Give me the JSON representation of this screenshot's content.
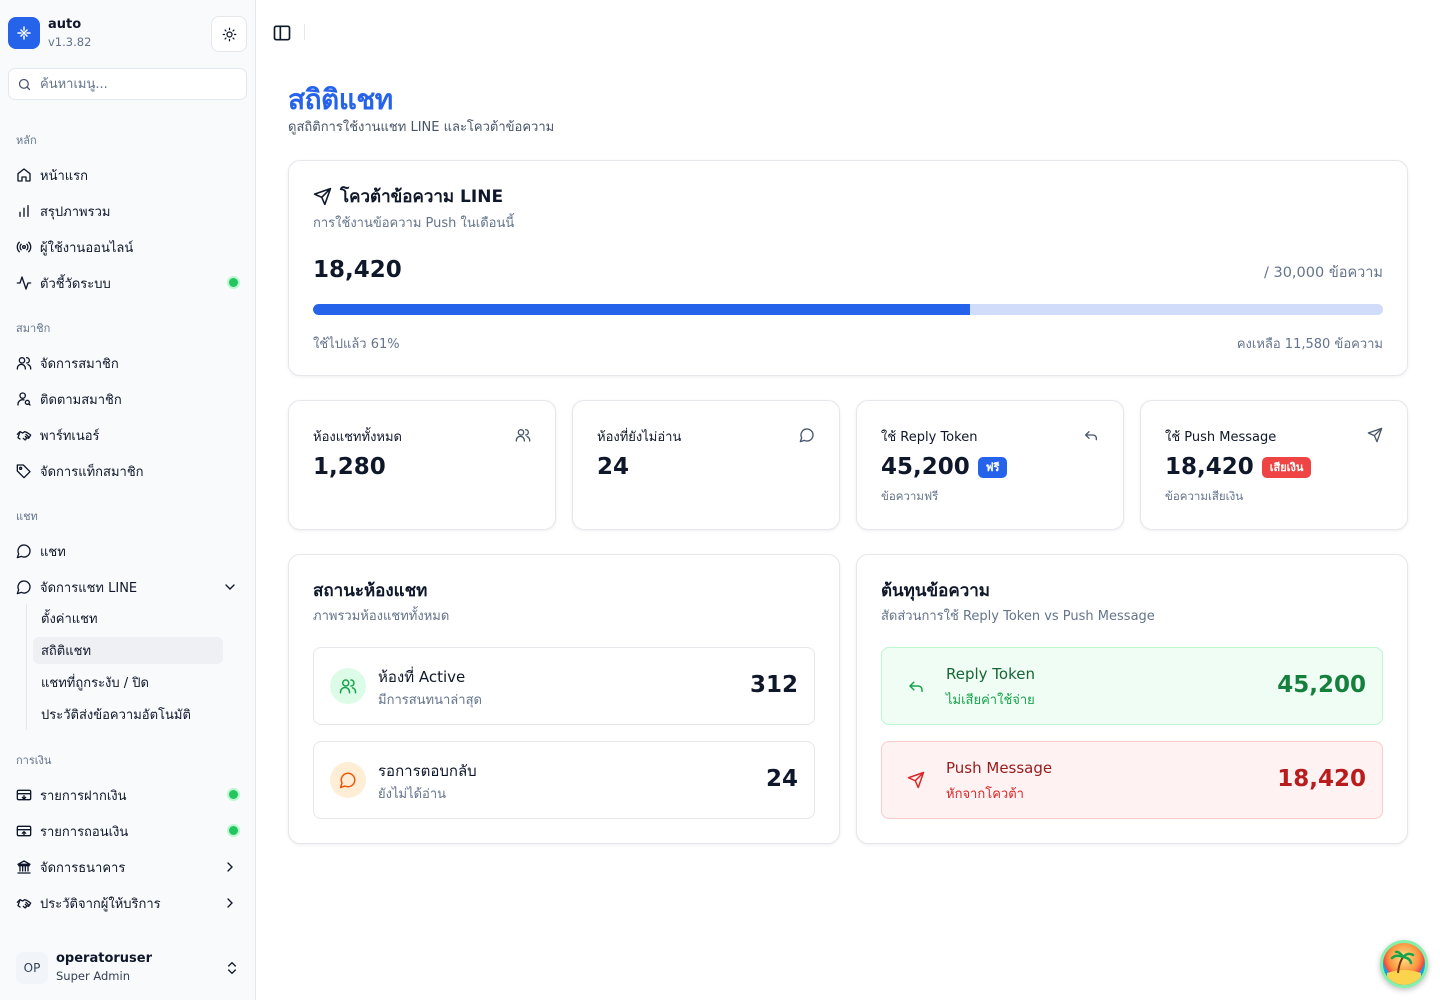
{
  "app": {
    "name": "auto",
    "version": "v1.3.82"
  },
  "search": {
    "placeholder": "ค้นหาเมนู..."
  },
  "sidebar": {
    "groups": [
      {
        "label": "หลัก",
        "items": [
          {
            "label": "หน้าแรก",
            "icon": "home-icon"
          },
          {
            "label": "สรุปภาพรวม",
            "icon": "bar-chart-icon"
          },
          {
            "label": "ผู้ใช้งานออนไลน์",
            "icon": "radio-icon"
          },
          {
            "label": "ตัวชี้วัดระบบ",
            "icon": "activity-icon",
            "status_dot": true
          }
        ]
      },
      {
        "label": "สมาชิก",
        "items": [
          {
            "label": "จัดการสมาชิก",
            "icon": "users-icon"
          },
          {
            "label": "ติดตามสมาชิก",
            "icon": "user-search-icon"
          },
          {
            "label": "พาร์ทเนอร์",
            "icon": "handshake-icon"
          },
          {
            "label": "จัดการแท็กสมาชิก",
            "icon": "tag-icon"
          }
        ]
      },
      {
        "label": "แชท",
        "items": [
          {
            "label": "แชท",
            "icon": "message-circle-icon"
          },
          {
            "label": "จัดการแชท LINE",
            "icon": "message-circle-icon",
            "expanded": true,
            "children": [
              {
                "label": "ตั้งค่าแชท"
              },
              {
                "label": "สถิติแชท",
                "active": true
              },
              {
                "label": "แชทที่ถูกระงับ / ปิด"
              },
              {
                "label": "ประวัติส่งข้อความอัตโนมัติ"
              }
            ]
          }
        ]
      },
      {
        "label": "การเงิน",
        "items": [
          {
            "label": "รายการฝากเงิน",
            "icon": "wallet-in-icon",
            "status_dot": true
          },
          {
            "label": "รายการถอนเงิน",
            "icon": "wallet-out-icon",
            "status_dot": true
          },
          {
            "label": "จัดการธนาคาร",
            "icon": "bank-icon",
            "chevron": true
          },
          {
            "label": "ประวัติจากผู้ให้บริการ",
            "icon": "handshake-icon",
            "chevron": true
          }
        ]
      }
    ]
  },
  "user": {
    "initials": "OP",
    "name": "operatoruser",
    "role": "Super Admin"
  },
  "page": {
    "title": "สถิติแชท",
    "subtitle": "ดูสถิติการใช้งานแชท LINE และโควต้าข้อความ"
  },
  "quota": {
    "title": "โควต้าข้อความ LINE",
    "description": "การใช้งานข้อความ Push ในเดือนนี้",
    "used": "18,420",
    "limit": "/ 30,000 ข้อความ",
    "used_fraction": 0.614,
    "percent_text": "ใช้ไปแล้ว 61%",
    "remaining_text": "คงเหลือ 11,580 ข้อความ"
  },
  "stats": [
    {
      "label": "ห้องแชททั้งหมด",
      "value": "1,280",
      "icon": "users-icon"
    },
    {
      "label": "ห้องที่ยังไม่อ่าน",
      "value": "24",
      "icon": "message-circle-icon"
    },
    {
      "label": "ใช้ Reply Token",
      "value": "45,200",
      "icon": "reply-icon",
      "badge": "ฟรี",
      "note": "ข้อความฟรี"
    },
    {
      "label": "ใช้ Push Message",
      "value": "18,420",
      "icon": "send-icon",
      "badge": "เสียเงิน",
      "note": "ข้อความเสียเงิน"
    }
  ],
  "room_status": {
    "title": "สถานะห้องแชท",
    "description": "ภาพรวมห้องแชททั้งหมด",
    "rows": [
      {
        "title": "ห้องที่ Active",
        "subtitle": "มีการสนทนาล่าสุด",
        "value": "312",
        "icon": "users-icon"
      },
      {
        "title": "รอการตอบกลับ",
        "subtitle": "ยังไม่ได้อ่าน",
        "value": "24",
        "icon": "message-circle-icon"
      }
    ]
  },
  "message_cost": {
    "title": "ต้นทุนข้อความ",
    "description": "สัดส่วนการใช้ Reply Token vs Push Message",
    "rows": [
      {
        "title": "Reply Token",
        "subtitle": "ไม่เสียค่าใช้จ่าย",
        "value": "45,200",
        "icon": "reply-icon"
      },
      {
        "title": "Push Message",
        "subtitle": "หักจากโควต้า",
        "value": "18,420",
        "icon": "send-icon"
      }
    ]
  },
  "colors": {
    "accent": "#2563eb",
    "success": "#16a34a",
    "danger": "#dc2626",
    "warning": "#ea580c"
  }
}
